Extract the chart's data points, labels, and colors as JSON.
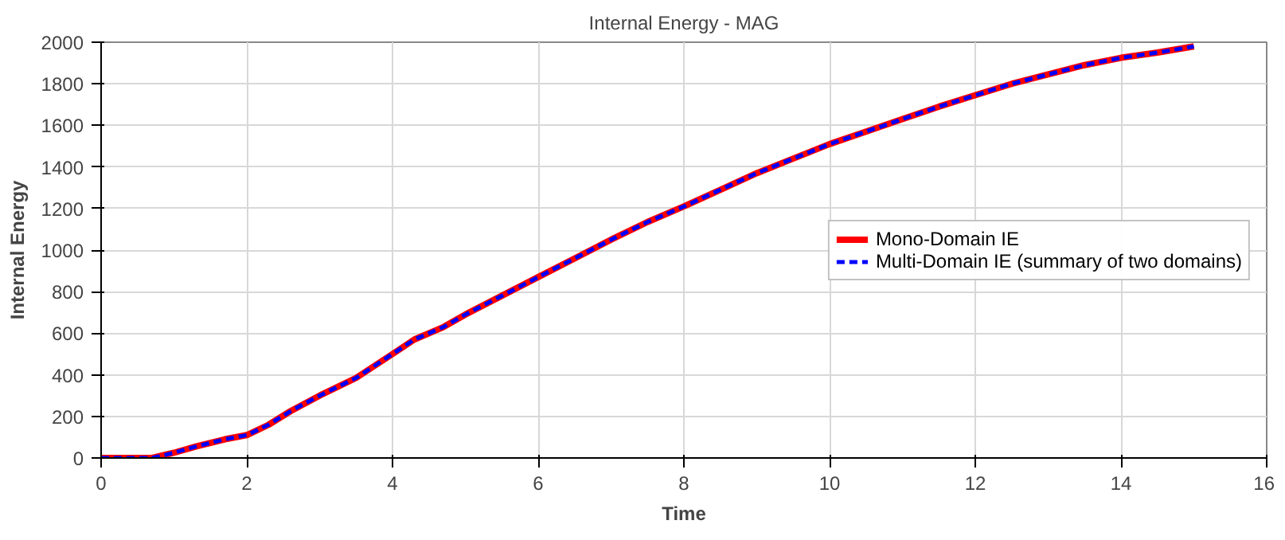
{
  "chart_data": {
    "type": "line",
    "title": "Internal Energy - MAG",
    "xlabel": "Time",
    "ylabel": "Internal Energy",
    "x": [
      0,
      0.7,
      1,
      1.3,
      1.7,
      2,
      2.3,
      2.6,
      3,
      3.5,
      4,
      4.3,
      4.7,
      5,
      5.5,
      6,
      6.5,
      7,
      7.5,
      8,
      8.5,
      9,
      9.5,
      10,
      10.5,
      11,
      11.5,
      12,
      12.5,
      13,
      13.5,
      14,
      14.5,
      15
    ],
    "series": [
      {
        "name": "Mono-Domain IE",
        "color": "#ff0000",
        "line_style": "solid",
        "values": [
          0,
          0,
          25,
          55,
          90,
          110,
          160,
          225,
          300,
          385,
          500,
          570,
          630,
          690,
          780,
          870,
          960,
          1050,
          1135,
          1210,
          1290,
          1370,
          1440,
          1510,
          1570,
          1630,
          1690,
          1745,
          1800,
          1845,
          1890,
          1925,
          1950,
          1980
        ]
      },
      {
        "name": "Multi-Domain IE (summary of two domains)",
        "color": "#0000ff",
        "line_style": "dashed",
        "values": [
          0,
          0,
          25,
          55,
          90,
          110,
          160,
          225,
          300,
          385,
          500,
          570,
          630,
          690,
          780,
          870,
          960,
          1050,
          1135,
          1210,
          1290,
          1370,
          1440,
          1510,
          1570,
          1630,
          1690,
          1745,
          1800,
          1845,
          1890,
          1925,
          1950,
          1980
        ]
      }
    ],
    "xlim": [
      0,
      16
    ],
    "ylim": [
      0,
      2000
    ],
    "xticks": [
      0,
      2,
      4,
      6,
      8,
      10,
      12,
      14,
      16
    ],
    "yticks": [
      0,
      200,
      400,
      600,
      800,
      1000,
      1200,
      1400,
      1600,
      1800,
      2000
    ],
    "grid": true,
    "legend": "right"
  }
}
